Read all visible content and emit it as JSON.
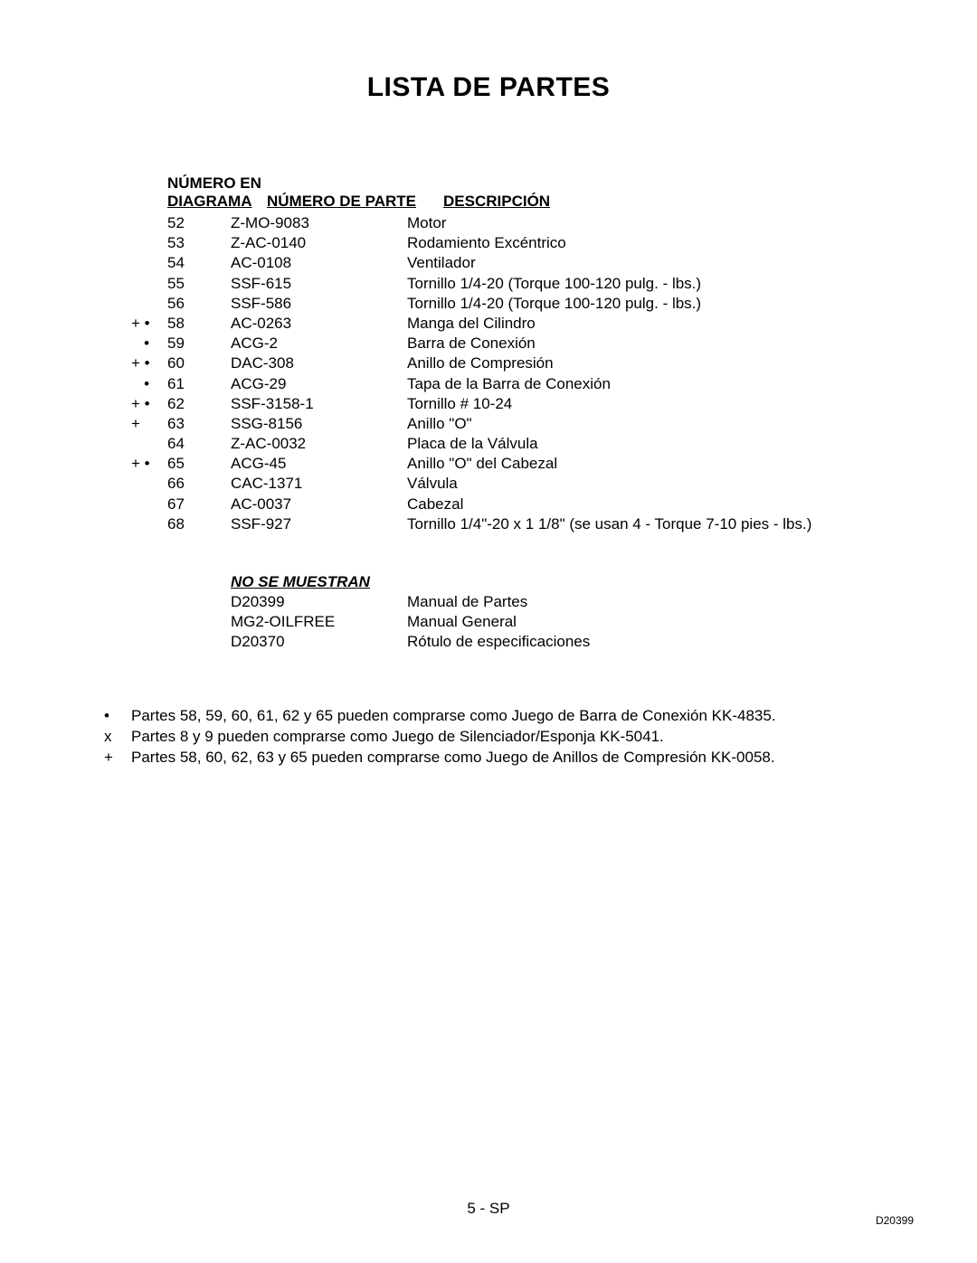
{
  "title": "LISTA DE PARTES",
  "headers": {
    "diagram_line1": "NÚMERO EN",
    "diagram_line2": "DIAGRAMA",
    "part": "NÚMERO DE PARTE",
    "desc": "DESCRIPCIÓN"
  },
  "rows": [
    {
      "sym": "",
      "diag": "52",
      "part": "Z-MO-9083",
      "desc": "Motor"
    },
    {
      "sym": "",
      "diag": "53",
      "part": "Z-AC-0140",
      "desc": "Rodamiento Excéntrico"
    },
    {
      "sym": "",
      "diag": "54",
      "part": "AC-0108",
      "desc": "Ventilador"
    },
    {
      "sym": "",
      "diag": "55",
      "part": "SSF-615",
      "desc": "Tornillo 1/4-20 (Torque 100-120 pulg. - lbs.)"
    },
    {
      "sym": "",
      "diag": "56",
      "part": "SSF-586",
      "desc": "Tornillo 1/4-20 (Torque 100-120 pulg. - lbs.)"
    },
    {
      "sym": "+ • ",
      "diag": "58",
      "part": "AC-0263",
      "desc": "Manga del Cilindro"
    },
    {
      "sym": "   • ",
      "diag": "59",
      "part": "ACG-2",
      "desc": "Barra de Conexión"
    },
    {
      "sym": "+ • ",
      "diag": "60",
      "part": "DAC-308",
      "desc": "Anillo de Compresión"
    },
    {
      "sym": "   • ",
      "diag": "61",
      "part": "ACG-29",
      "desc": "Tapa de la Barra de Conexión"
    },
    {
      "sym": "+ • ",
      "diag": "62",
      "part": "SSF-3158-1",
      "desc": "Tornillo # 10-24"
    },
    {
      "sym": "+   ",
      "diag": "63",
      "part": "SSG-8156",
      "desc": "Anillo \"O\""
    },
    {
      "sym": "",
      "diag": "64",
      "part": "Z-AC-0032",
      "desc": "Placa de la Válvula"
    },
    {
      "sym": "+ • ",
      "diag": "65",
      "part": "ACG-45",
      "desc": "Anillo \"O\" del Cabezal"
    },
    {
      "sym": "",
      "diag": "66",
      "part": "CAC-1371",
      "desc": "Válvula"
    },
    {
      "sym": "",
      "diag": "67",
      "part": "AC-0037",
      "desc": "Cabezal"
    },
    {
      "sym": "",
      "diag": "68",
      "part": "SSF-927",
      "desc": "Tornillo 1/4\"-20 x 1 1/8\" (se usan 4 - Torque 7-10 pies - lbs.)"
    }
  ],
  "not_shown_header": "NO SE MUESTRAN",
  "not_shown": [
    {
      "part": "D20399",
      "desc": "Manual de Partes"
    },
    {
      "part": "MG2-OILFREE",
      "desc": "Manual General"
    },
    {
      "part": "D20370",
      "desc": "Rótulo de especificaciones"
    }
  ],
  "notes": [
    {
      "sym": "•",
      "text": "Partes 58, 59, 60, 61, 62 y 65 pueden comprarse como Juego de Barra de Conexión KK-4835."
    },
    {
      "sym": "x",
      "text": "Partes 8 y 9 pueden comprarse como Juego de Silenciador/Esponja KK-5041."
    },
    {
      "sym": "+",
      "text": "Partes 58, 60, 62, 63 y 65 pueden comprarse como Juego de Anillos de Compresión KK-0058."
    }
  ],
  "footer_center": "5 - SP",
  "footer_right": "D20399",
  "colors": {
    "background": "#ffffff",
    "text": "#000000"
  },
  "typography": {
    "title_fontsize": 30,
    "body_fontsize": 17,
    "footer_right_fontsize": 12
  }
}
